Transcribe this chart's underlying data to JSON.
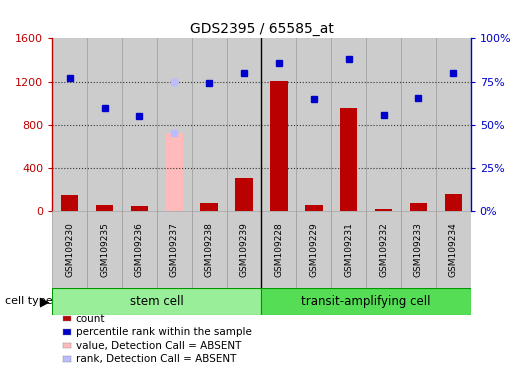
{
  "title": "GDS2395 / 65585_at",
  "samples": [
    "GSM109230",
    "GSM109235",
    "GSM109236",
    "GSM109237",
    "GSM109238",
    "GSM109239",
    "GSM109228",
    "GSM109229",
    "GSM109231",
    "GSM109232",
    "GSM109233",
    "GSM109234"
  ],
  "n_stem": 6,
  "n_transit": 6,
  "count_values": [
    150,
    55,
    45,
    10,
    80,
    310,
    1210,
    55,
    960,
    20,
    75,
    155
  ],
  "percentile_values": [
    1230,
    960,
    880,
    1200,
    1190,
    1280,
    1370,
    1040,
    1410,
    890,
    1050,
    1280
  ],
  "absent_value_idx": 3,
  "absent_value": 720,
  "absent_rank_idx": 3,
  "absent_rank_val": 720,
  "detection_call": [
    "P",
    "P",
    "P",
    "A",
    "P",
    "P",
    "P",
    "P",
    "P",
    "P",
    "P",
    "P"
  ],
  "ylim_left": [
    0,
    1600
  ],
  "ylim_right": [
    0,
    100
  ],
  "yticks_left": [
    0,
    400,
    800,
    1200,
    1600
  ],
  "ytick_labels_left": [
    "0",
    "400",
    "800",
    "1200",
    "1600"
  ],
  "yticks_right_pct": [
    0,
    25,
    50,
    75,
    100
  ],
  "ytick_labels_right": [
    "0%",
    "25%",
    "50%",
    "75%",
    "100%"
  ],
  "bar_color": "#bb0000",
  "dot_color": "#0000cc",
  "absent_bar_color": "#ffbbbb",
  "absent_dot_color": "#bbbbff",
  "sample_box_color": "#cccccc",
  "sample_box_edge": "#999999",
  "stem_cell_color": "#99ee99",
  "transit_cell_color": "#55dd55",
  "cell_border_color": "#009900",
  "dotted_line_color": "#333333",
  "title_fontsize": 10,
  "axis_label_fontsize": 8,
  "sample_fontsize": 6.5,
  "legend_fontsize": 7.5
}
